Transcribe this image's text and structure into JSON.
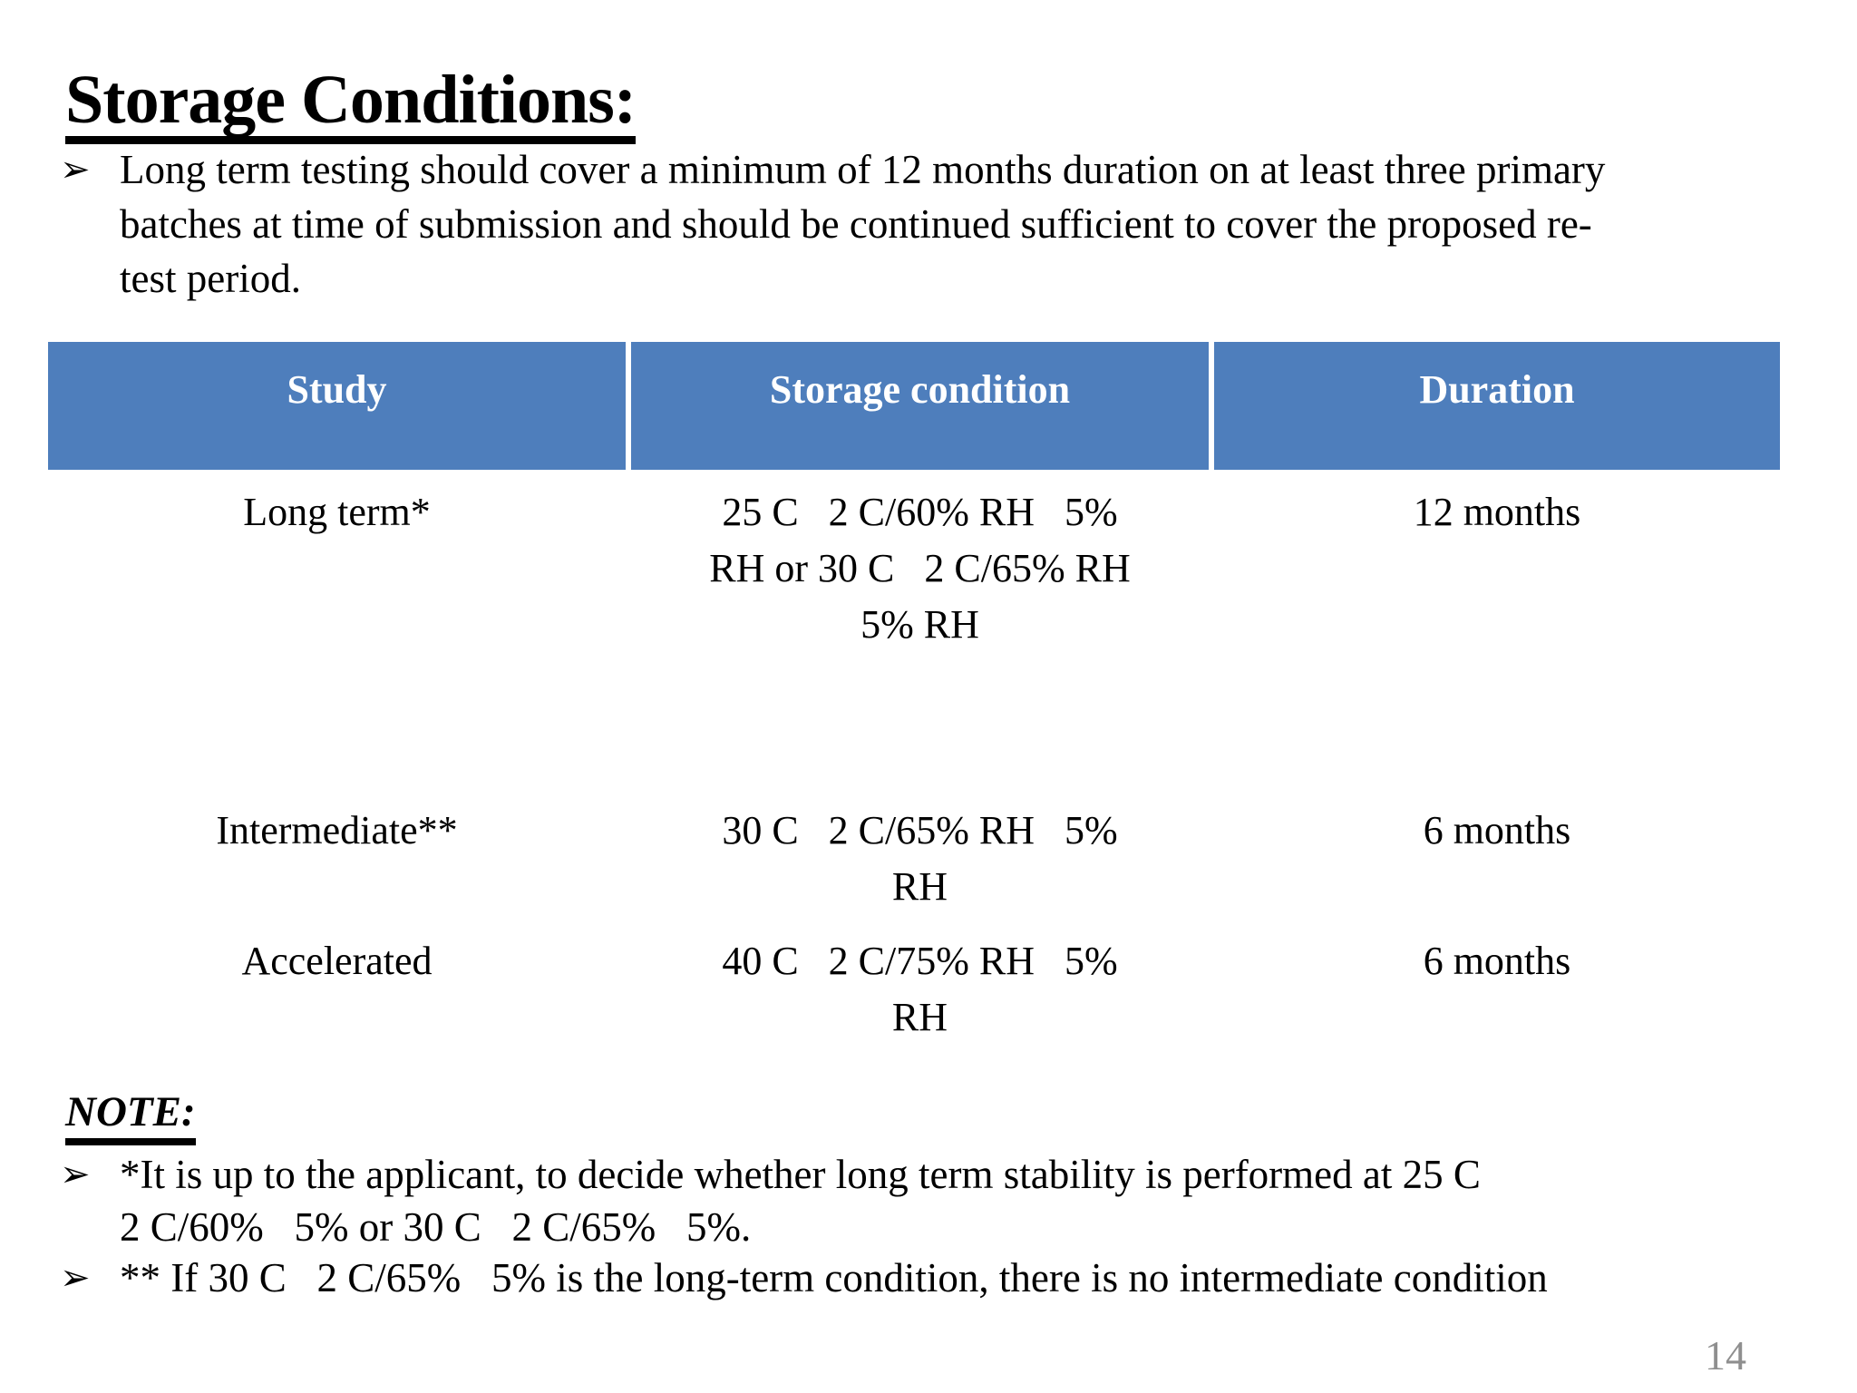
{
  "slide": {
    "title": "Storage Conditions:",
    "bullet_marker": "➢",
    "intro_bullet": {
      "lines": [
        "Long term testing should cover a minimum of 12 months duration on at least three primary",
        "batches at time of submission and should be continued sufficient to cover the proposed re-",
        "test period."
      ]
    },
    "table": {
      "headers": [
        "Study",
        "Storage condition",
        "Duration"
      ],
      "rows": [
        {
          "study": "Long term*",
          "condition_lines": [
            "25 C   2 C/60% RH   5%",
            "RH or 30 C   2 C/65% RH",
            "5% RH"
          ],
          "duration": "12 months"
        },
        {
          "study": "Intermediate**",
          "condition_lines": [
            "30 C   2 C/65% RH   5%",
            "RH"
          ],
          "duration": "6 months"
        },
        {
          "study": "Accelerated",
          "condition_lines": [
            "40 C   2 C/75% RH   5%",
            "RH"
          ],
          "duration": "6 months"
        }
      ]
    },
    "note": {
      "heading": "NOTE:",
      "bullets": [
        {
          "lines": [
            "*It is up to the applicant, to decide whether long term stability is performed at 25 C",
            "2 C/60%   5% or 30 C   2 C/65%   5%."
          ]
        },
        {
          "lines": [
            "** If 30 C   2 C/65%   5% is the long-term condition, there is no intermediate condition"
          ]
        }
      ]
    },
    "page_number": "14",
    "colors": {
      "slide_bg": "#FFFFFF",
      "text": "#000000",
      "header_bg": "#4E7EBC",
      "header_text": "#FFFFFF",
      "row_long_term": "#D3D8E7",
      "row_intermediate": "#E9EBF2",
      "row_accelerated": "#C9D0E2",
      "page_number": "#8F8F8F"
    }
  }
}
